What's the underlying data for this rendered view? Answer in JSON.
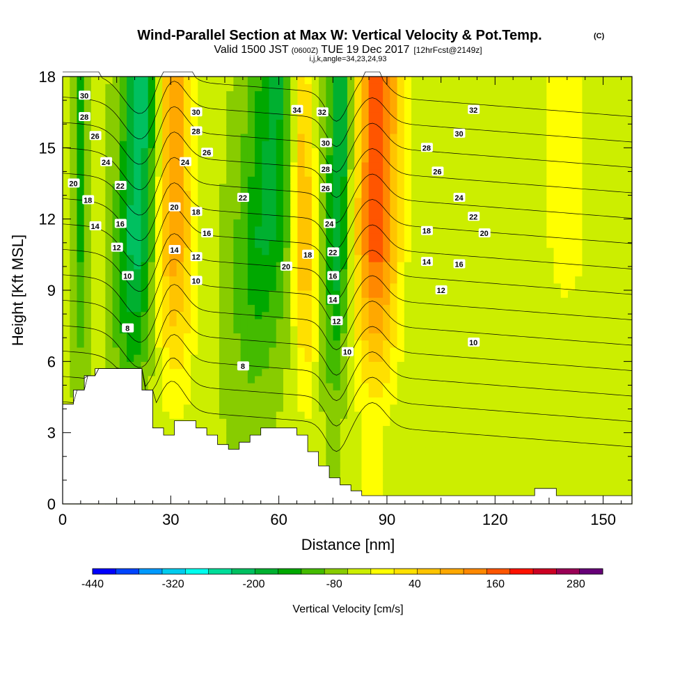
{
  "header": {
    "title": "Wind-Parallel Section at Max W: Vertical Velocity & Pot.Temp.",
    "title_tag": "(C)",
    "valid_prefix": "Valid 1500 JST",
    "valid_utc": "(0600Z)",
    "valid_date": "TUE 19 Dec 2017",
    "forecast": "[12hrFcst@2149z]",
    "indices": "i,j,k,angle=34,23,24,93"
  },
  "chart_data": {
    "type": "heatmap",
    "xlabel": "Distance [nm]",
    "ylabel": "Height [Kft MSL]",
    "xlim": [
      0,
      158
    ],
    "ylim": [
      0,
      18
    ],
    "x_ticks": [
      0,
      30,
      60,
      90,
      120,
      150
    ],
    "y_ticks": [
      0,
      3,
      6,
      9,
      12,
      15,
      18
    ],
    "grid": false,
    "colorbar": {
      "label": "Vertical Velocity [cm/s]",
      "range": [
        -440,
        320
      ],
      "step": 40,
      "tick_labels": [
        "-440",
        "-320",
        "-200",
        "-80",
        "40",
        "160",
        "280"
      ],
      "tick_values": [
        -440,
        -320,
        -200,
        -80,
        40,
        160,
        280
      ],
      "colors": [
        "#0000ff",
        "#0044ff",
        "#0099ff",
        "#00ccee",
        "#00ffee",
        "#00dd99",
        "#00c060",
        "#00b030",
        "#00a800",
        "#44bb00",
        "#88cc00",
        "#ccee00",
        "#ffff00",
        "#ffe000",
        "#ffc400",
        "#ffa800",
        "#ff8800",
        "#ff5500",
        "#ff1100",
        "#cc0022",
        "#990055",
        "#660077"
      ]
    },
    "velocity_features": [
      {
        "x": 20,
        "width": 8,
        "w": -200,
        "tilt": 0.25
      },
      {
        "x": 31,
        "width": 8,
        "w": 180,
        "tilt": -0.05
      },
      {
        "x": 55,
        "width": 12,
        "w": -140,
        "tilt": 0.55
      },
      {
        "x": 67,
        "width": 5,
        "w": 170,
        "tilt": -0.1
      },
      {
        "x": 76,
        "width": 5,
        "w": -180,
        "tilt": 0.15
      },
      {
        "x": 87,
        "width": 9,
        "w": 260,
        "tilt": 0.05
      },
      {
        "x": 5,
        "width": 3,
        "w": -100,
        "tilt": 0.0
      },
      {
        "x": 140,
        "width": 14,
        "w": 40,
        "tilt": 0.0
      }
    ],
    "terrain": [
      [
        0,
        4.2
      ],
      [
        3,
        4.2
      ],
      [
        3,
        4.8
      ],
      [
        6,
        4.8
      ],
      [
        6,
        5.4
      ],
      [
        9,
        5.4
      ],
      [
        9,
        5.7
      ],
      [
        22,
        5.7
      ],
      [
        22,
        4.8
      ],
      [
        25,
        4.8
      ],
      [
        25,
        3.2
      ],
      [
        28,
        3.2
      ],
      [
        28,
        2.9
      ],
      [
        31,
        2.9
      ],
      [
        31,
        3.5
      ],
      [
        37,
        3.5
      ],
      [
        37,
        3.2
      ],
      [
        40,
        3.2
      ],
      [
        40,
        2.9
      ],
      [
        43,
        2.9
      ],
      [
        43,
        2.5
      ],
      [
        46,
        2.5
      ],
      [
        46,
        2.3
      ],
      [
        49,
        2.3
      ],
      [
        49,
        2.6
      ],
      [
        52,
        2.6
      ],
      [
        52,
        2.9
      ],
      [
        55,
        2.9
      ],
      [
        55,
        3.2
      ],
      [
        65,
        3.2
      ],
      [
        65,
        2.9
      ],
      [
        68,
        2.9
      ],
      [
        68,
        2.2
      ],
      [
        71,
        2.2
      ],
      [
        71,
        1.6
      ],
      [
        74,
        1.6
      ],
      [
        74,
        1.1
      ],
      [
        77,
        1.1
      ],
      [
        77,
        0.8
      ],
      [
        80,
        0.8
      ],
      [
        80,
        0.55
      ],
      [
        83,
        0.55
      ],
      [
        83,
        0.35
      ],
      [
        131,
        0.35
      ],
      [
        131,
        0.65
      ],
      [
        137,
        0.65
      ],
      [
        137,
        0.35
      ],
      [
        158,
        0.35
      ]
    ],
    "theta_levels": [
      8,
      10,
      12,
      14,
      16,
      18,
      20,
      22,
      24,
      26,
      28,
      30,
      32,
      34
    ],
    "contour_labels": [
      {
        "x": 6,
        "y": 17.2,
        "v": "30"
      },
      {
        "x": 6,
        "y": 16.3,
        "v": "28"
      },
      {
        "x": 9,
        "y": 15.5,
        "v": "26"
      },
      {
        "x": 12,
        "y": 14.4,
        "v": "24"
      },
      {
        "x": 3,
        "y": 13.5,
        "v": "20"
      },
      {
        "x": 16,
        "y": 13.4,
        "v": "22"
      },
      {
        "x": 7,
        "y": 12.8,
        "v": "18"
      },
      {
        "x": 9,
        "y": 11.7,
        "v": "14"
      },
      {
        "x": 16,
        "y": 11.8,
        "v": "16"
      },
      {
        "x": 15,
        "y": 10.8,
        "v": "12"
      },
      {
        "x": 18,
        "y": 9.6,
        "v": "10"
      },
      {
        "x": 18,
        "y": 7.4,
        "v": "8"
      },
      {
        "x": 37,
        "y": 16.5,
        "v": "30"
      },
      {
        "x": 37,
        "y": 15.7,
        "v": "28"
      },
      {
        "x": 40,
        "y": 14.8,
        "v": "26"
      },
      {
        "x": 34,
        "y": 14.4,
        "v": "24"
      },
      {
        "x": 31,
        "y": 12.5,
        "v": "20"
      },
      {
        "x": 37,
        "y": 12.3,
        "v": "18"
      },
      {
        "x": 40,
        "y": 11.4,
        "v": "16"
      },
      {
        "x": 31,
        "y": 10.7,
        "v": "14"
      },
      {
        "x": 37,
        "y": 10.4,
        "v": "12"
      },
      {
        "x": 37,
        "y": 9.4,
        "v": "10"
      },
      {
        "x": 50,
        "y": 5.8,
        "v": "8"
      },
      {
        "x": 50,
        "y": 12.9,
        "v": "22"
      },
      {
        "x": 65,
        "y": 16.6,
        "v": "34"
      },
      {
        "x": 72,
        "y": 16.5,
        "v": "32"
      },
      {
        "x": 73,
        "y": 15.2,
        "v": "30"
      },
      {
        "x": 73,
        "y": 14.1,
        "v": "28"
      },
      {
        "x": 73,
        "y": 13.3,
        "v": "26"
      },
      {
        "x": 74,
        "y": 11.8,
        "v": "24"
      },
      {
        "x": 75,
        "y": 10.6,
        "v": "22"
      },
      {
        "x": 68,
        "y": 10.5,
        "v": "18"
      },
      {
        "x": 62,
        "y": 10.0,
        "v": "20"
      },
      {
        "x": 75,
        "y": 9.6,
        "v": "16"
      },
      {
        "x": 75,
        "y": 8.6,
        "v": "14"
      },
      {
        "x": 76,
        "y": 7.7,
        "v": "12"
      },
      {
        "x": 79,
        "y": 6.4,
        "v": "10"
      },
      {
        "x": 114,
        "y": 16.6,
        "v": "32"
      },
      {
        "x": 110,
        "y": 15.6,
        "v": "30"
      },
      {
        "x": 101,
        "y": 15.0,
        "v": "28"
      },
      {
        "x": 104,
        "y": 14.0,
        "v": "26"
      },
      {
        "x": 110,
        "y": 12.9,
        "v": "24"
      },
      {
        "x": 114,
        "y": 12.1,
        "v": "22"
      },
      {
        "x": 117,
        "y": 11.4,
        "v": "20"
      },
      {
        "x": 101,
        "y": 11.5,
        "v": "18"
      },
      {
        "x": 110,
        "y": 10.1,
        "v": "16"
      },
      {
        "x": 101,
        "y": 10.2,
        "v": "14"
      },
      {
        "x": 105,
        "y": 9.0,
        "v": "12"
      },
      {
        "x": 114,
        "y": 6.8,
        "v": "10"
      }
    ]
  }
}
